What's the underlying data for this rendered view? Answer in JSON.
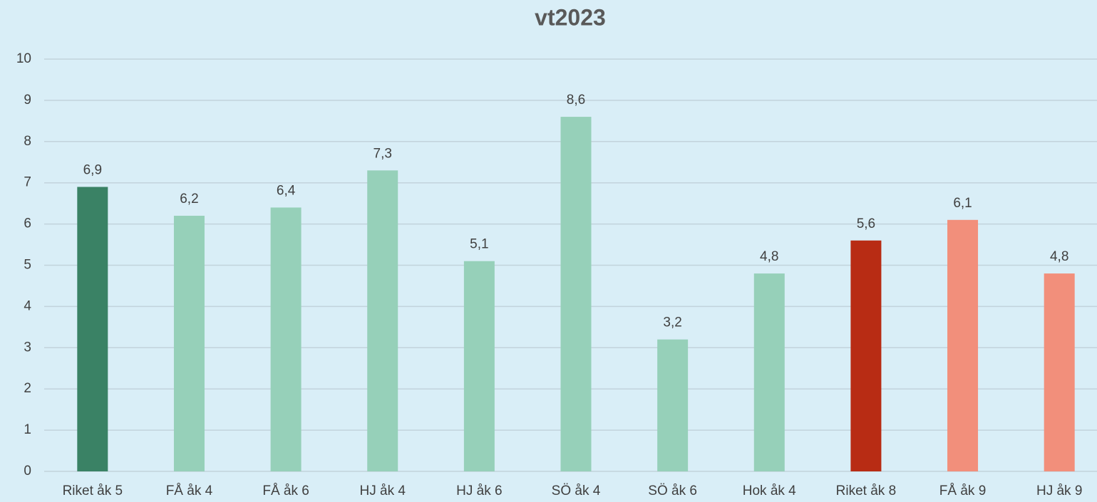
{
  "chart_data": {
    "type": "bar",
    "title": "vt2023",
    "categories": [
      "Riket åk 5",
      "FÅ åk 4",
      "FÅ åk 6",
      "HJ åk 4",
      "HJ åk 6",
      "SÖ åk 4",
      "SÖ åk 6",
      "Hok åk 4",
      "Riket åk 8",
      "FÅ åk 9",
      "HJ åk 9"
    ],
    "values": [
      6.9,
      6.2,
      6.4,
      7.3,
      5.1,
      8.6,
      3.2,
      4.8,
      5.6,
      6.1,
      4.8
    ],
    "value_labels": [
      "6,9",
      "6,2",
      "6,4",
      "7,3",
      "5,1",
      "8,6",
      "3,2",
      "4,8",
      "5,6",
      "6,1",
      "4,8"
    ],
    "colors": [
      "#3a8265",
      "#96d0b9",
      "#96d0b9",
      "#96d0b9",
      "#96d0b9",
      "#96d0b9",
      "#96d0b9",
      "#96d0b9",
      "#b82c14",
      "#f28f7b",
      "#f28f7b"
    ],
    "ylim": [
      0,
      10
    ],
    "yticks": [
      0,
      1,
      2,
      3,
      4,
      5,
      6,
      7,
      8,
      9,
      10
    ],
    "grid": true
  }
}
